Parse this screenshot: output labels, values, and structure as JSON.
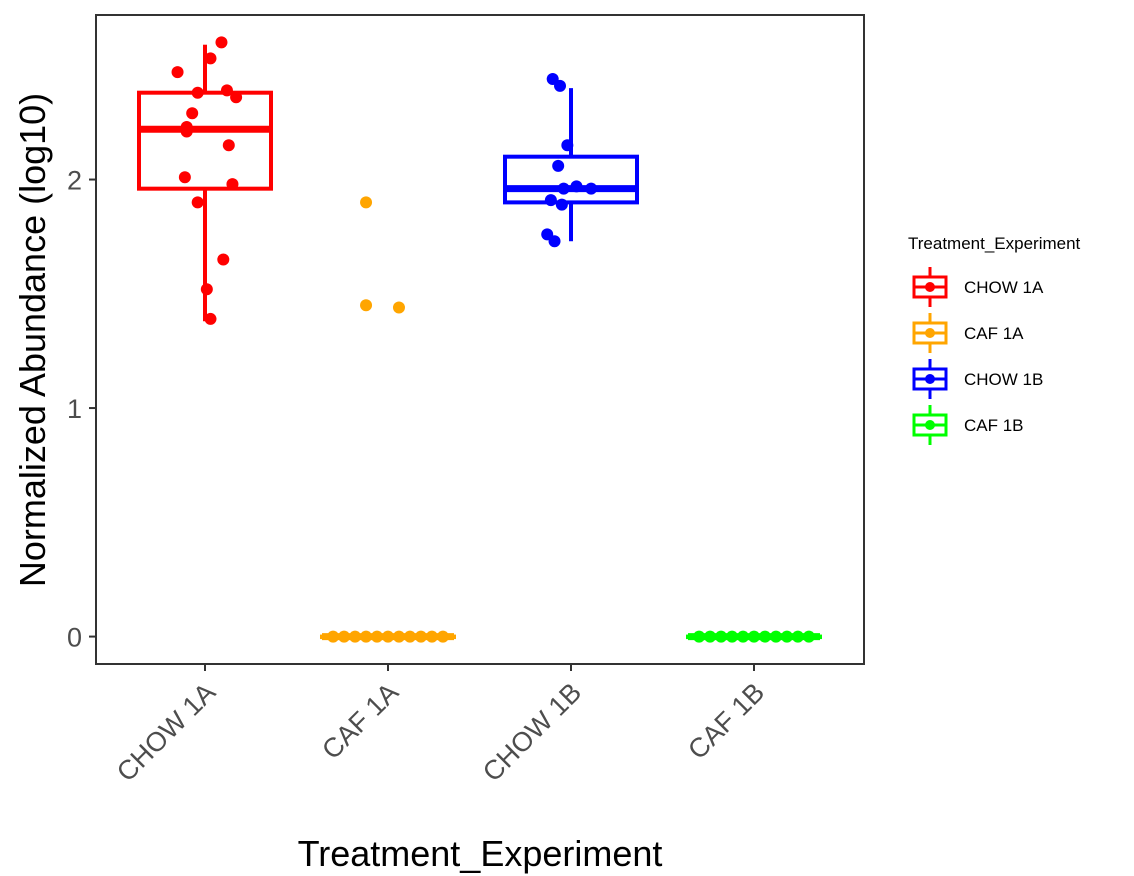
{
  "chart_data": {
    "type": "boxplot",
    "title": "",
    "xlabel": "Treatment_Experiment",
    "ylabel": "Normalized Abundance (log10)",
    "ylim": [
      -0.12,
      2.72
    ],
    "y_ticks": [
      0,
      1,
      2
    ],
    "grid": false,
    "legend": {
      "title": "Treatment_Experiment",
      "placement": "right"
    },
    "categories": [
      "CHOW 1A",
      "CAF 1A",
      "CHOW 1B",
      "CAF 1B"
    ],
    "series": [
      {
        "name": "CHOW 1A",
        "color": "#ff0000",
        "box": {
          "q1": 1.96,
          "median": 2.22,
          "q3": 2.38,
          "whisker_low": 1.38,
          "whisker_high": 2.59
        },
        "points": [
          {
            "jitter": 0.09,
            "y": 2.6
          },
          {
            "jitter": 0.03,
            "y": 2.53
          },
          {
            "jitter": -0.15,
            "y": 2.47
          },
          {
            "jitter": -0.04,
            "y": 2.38
          },
          {
            "jitter": 0.12,
            "y": 2.39
          },
          {
            "jitter": 0.17,
            "y": 2.36
          },
          {
            "jitter": -0.07,
            "y": 2.29
          },
          {
            "jitter": -0.1,
            "y": 2.23
          },
          {
            "jitter": -0.1,
            "y": 2.21
          },
          {
            "jitter": 0.13,
            "y": 2.15
          },
          {
            "jitter": -0.11,
            "y": 2.01
          },
          {
            "jitter": 0.15,
            "y": 1.98
          },
          {
            "jitter": -0.04,
            "y": 1.9
          },
          {
            "jitter": 0.1,
            "y": 1.65
          },
          {
            "jitter": 0.01,
            "y": 1.52
          },
          {
            "jitter": 0.03,
            "y": 1.39
          }
        ]
      },
      {
        "name": "CAF 1A",
        "color": "#ffa500",
        "box": {
          "q1": 0,
          "median": 0,
          "q3": 0,
          "whisker_low": 0,
          "whisker_high": 0
        },
        "points": [
          {
            "jitter": -0.12,
            "y": 1.9
          },
          {
            "jitter": -0.12,
            "y": 1.45
          },
          {
            "jitter": 0.06,
            "y": 1.44
          },
          {
            "jitter": -0.3,
            "y": 0
          },
          {
            "jitter": -0.24,
            "y": 0
          },
          {
            "jitter": -0.18,
            "y": 0
          },
          {
            "jitter": -0.12,
            "y": 0
          },
          {
            "jitter": -0.06,
            "y": 0
          },
          {
            "jitter": 0.0,
            "y": 0
          },
          {
            "jitter": 0.06,
            "y": 0
          },
          {
            "jitter": 0.12,
            "y": 0
          },
          {
            "jitter": 0.18,
            "y": 0
          },
          {
            "jitter": 0.24,
            "y": 0
          },
          {
            "jitter": 0.3,
            "y": 0
          }
        ]
      },
      {
        "name": "CHOW 1B",
        "color": "#0000ff",
        "box": {
          "q1": 1.9,
          "median": 1.96,
          "q3": 2.1,
          "whisker_low": 1.73,
          "whisker_high": 2.4
        },
        "points": [
          {
            "jitter": -0.1,
            "y": 2.44
          },
          {
            "jitter": -0.06,
            "y": 2.41
          },
          {
            "jitter": -0.02,
            "y": 2.15
          },
          {
            "jitter": -0.07,
            "y": 2.06
          },
          {
            "jitter": 0.03,
            "y": 1.97
          },
          {
            "jitter": 0.11,
            "y": 1.96
          },
          {
            "jitter": -0.04,
            "y": 1.96
          },
          {
            "jitter": -0.11,
            "y": 1.91
          },
          {
            "jitter": -0.05,
            "y": 1.89
          },
          {
            "jitter": -0.13,
            "y": 1.76
          },
          {
            "jitter": -0.09,
            "y": 1.73
          }
        ]
      },
      {
        "name": "CAF 1B",
        "color": "#00ff00",
        "box": {
          "q1": 0,
          "median": 0,
          "q3": 0,
          "whisker_low": 0,
          "whisker_high": 0
        },
        "points": [
          {
            "jitter": -0.3,
            "y": 0
          },
          {
            "jitter": -0.24,
            "y": 0
          },
          {
            "jitter": -0.18,
            "y": 0
          },
          {
            "jitter": -0.12,
            "y": 0
          },
          {
            "jitter": -0.06,
            "y": 0
          },
          {
            "jitter": 0.0,
            "y": 0
          },
          {
            "jitter": 0.06,
            "y": 0
          },
          {
            "jitter": 0.12,
            "y": 0
          },
          {
            "jitter": 0.18,
            "y": 0
          },
          {
            "jitter": 0.24,
            "y": 0
          },
          {
            "jitter": 0.3,
            "y": 0
          }
        ]
      }
    ]
  }
}
